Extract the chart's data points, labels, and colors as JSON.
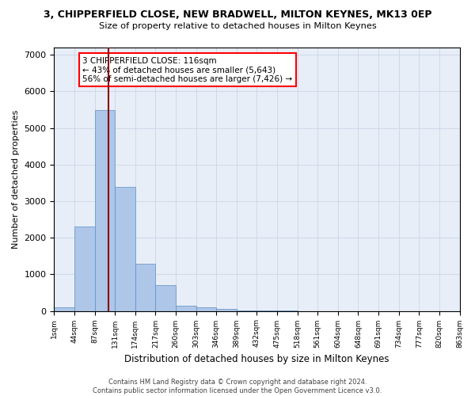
{
  "title1": "3, CHIPPERFIELD CLOSE, NEW BRADWELL, MILTON KEYNES, MK13 0EP",
  "title2": "Size of property relative to detached houses in Milton Keynes",
  "xlabel": "Distribution of detached houses by size in Milton Keynes",
  "ylabel": "Number of detached properties",
  "bin_labels": [
    "1sqm",
    "44sqm",
    "87sqm",
    "131sqm",
    "174sqm",
    "217sqm",
    "260sqm",
    "303sqm",
    "346sqm",
    "389sqm",
    "432sqm",
    "475sqm",
    "518sqm",
    "561sqm",
    "604sqm",
    "648sqm",
    "691sqm",
    "734sqm",
    "777sqm",
    "820sqm",
    "863sqm"
  ],
  "bar_values": [
    100,
    2300,
    5500,
    3400,
    1300,
    700,
    150,
    100,
    50,
    10,
    5,
    2,
    1,
    0,
    0,
    0,
    0,
    0,
    0,
    0
  ],
  "bar_color": "#aec6e8",
  "bar_edge_color": "#5a8fc4",
  "property_line_x": 2.66,
  "annotation_line1": "3 CHIPPERFIELD CLOSE: 116sqm",
  "annotation_line2": "← 43% of detached houses are smaller (5,643)",
  "annotation_line3": "56% of semi-detached houses are larger (7,426) →",
  "annotation_box_color": "white",
  "annotation_box_edge_color": "red",
  "vline_color": "#8b0000",
  "ylim": [
    0,
    7200
  ],
  "yticks": [
    0,
    1000,
    2000,
    3000,
    4000,
    5000,
    6000,
    7000
  ],
  "grid_color": "#d0d8e8",
  "background_color": "#e8eef8",
  "footer1": "Contains HM Land Registry data © Crown copyright and database right 2024.",
  "footer2": "Contains public sector information licensed under the Open Government Licence v3.0."
}
